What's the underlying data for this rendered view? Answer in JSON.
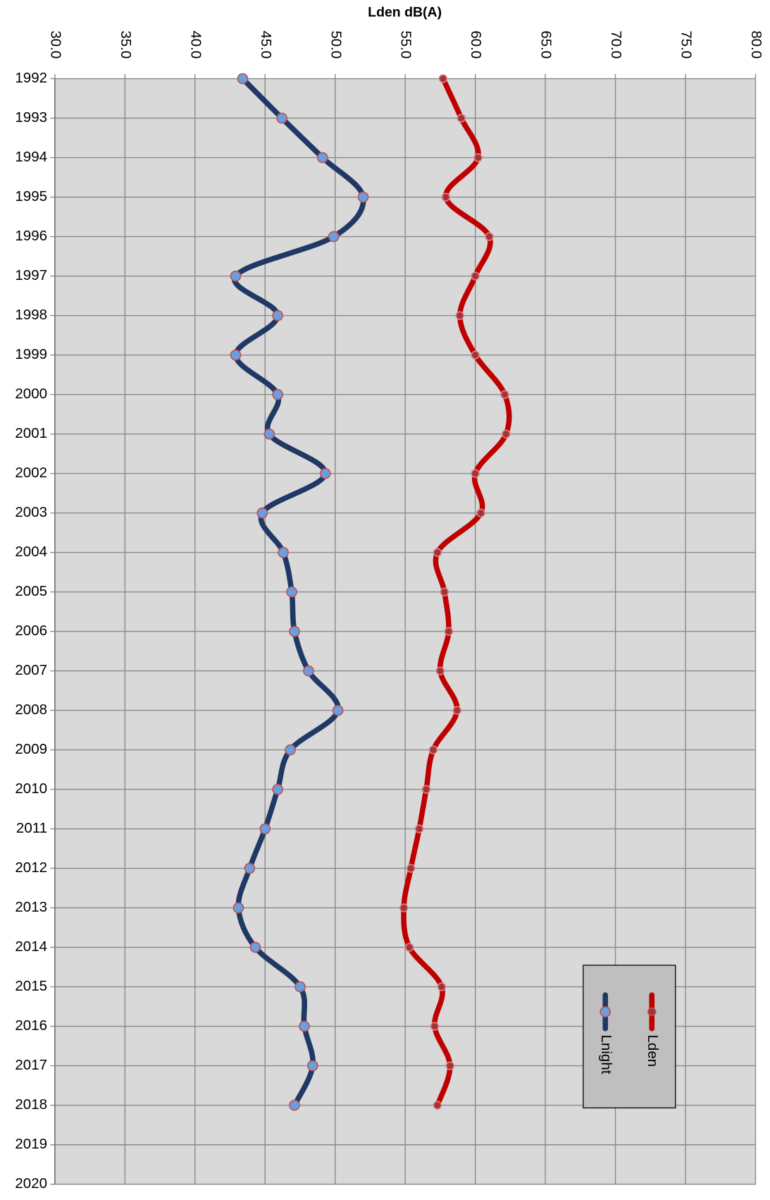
{
  "chart_data": {
    "type": "line",
    "orientation": "horizontal",
    "title": "Lden dB(A)",
    "categories": [
      "1992",
      "1993",
      "1994",
      "1995",
      "1996",
      "1997",
      "1998",
      "1999",
      "2000",
      "2001",
      "2002",
      "2003",
      "2004",
      "2005",
      "2006",
      "2007",
      "2008",
      "2009",
      "2010",
      "2011",
      "2012",
      "2013",
      "2014",
      "2015",
      "2016",
      "2017",
      "2018",
      "2019",
      "2020"
    ],
    "series": [
      {
        "name": "Lden",
        "color": "#c00000",
        "marker_color": "#a0343a",
        "values": [
          57.7,
          59.0,
          60.2,
          57.9,
          61.0,
          60.0,
          58.9,
          60.0,
          62.1,
          62.2,
          60.0,
          60.4,
          57.3,
          57.8,
          58.1,
          57.5,
          58.7,
          57.0,
          56.5,
          56.0,
          55.4,
          54.9,
          55.3,
          57.6,
          57.1,
          58.2,
          57.3,
          null,
          null
        ]
      },
      {
        "name": "Lnight",
        "color": "#1f3864",
        "marker_color": "#6a9ee0",
        "values": [
          43.4,
          46.2,
          49.1,
          52.0,
          49.9,
          42.9,
          45.9,
          42.9,
          45.9,
          45.3,
          49.3,
          44.8,
          46.3,
          46.9,
          47.1,
          48.1,
          50.2,
          46.8,
          45.9,
          45.0,
          43.9,
          43.1,
          44.3,
          47.5,
          47.8,
          48.4,
          47.1,
          null,
          null
        ]
      }
    ],
    "xlim": [
      30,
      80
    ],
    "xticks": [
      {
        "value": 30,
        "label": "30.0"
      },
      {
        "value": 35,
        "label": "35.0"
      },
      {
        "value": 40,
        "label": "40.0"
      },
      {
        "value": 45,
        "label": "45.0"
      },
      {
        "value": 50,
        "label": "50.0"
      },
      {
        "value": 55,
        "label": "55.0"
      },
      {
        "value": 60,
        "label": "60.0"
      },
      {
        "value": 65,
        "label": "65.0"
      },
      {
        "value": 70,
        "label": "70.0"
      },
      {
        "value": 75,
        "label": "75.0"
      },
      {
        "value": 80,
        "label": "80.0"
      }
    ],
    "grid": true,
    "smooth": true,
    "legend": "lower right"
  }
}
